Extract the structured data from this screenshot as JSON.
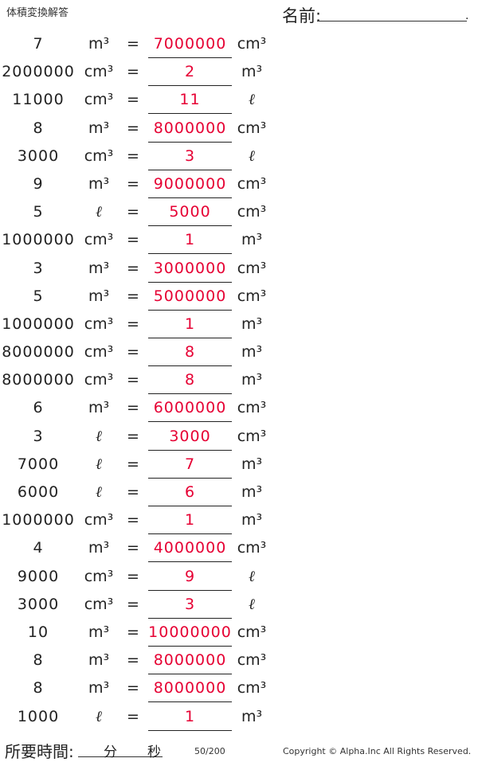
{
  "header": {
    "title": "体積変換解答",
    "name_label": "名前:",
    "name_end": "."
  },
  "rows": [
    {
      "value": "7",
      "from_unit": "m³",
      "equals": "=",
      "answer": "7000000",
      "to_unit": "cm³"
    },
    {
      "value": "2000000",
      "from_unit": "cm³",
      "equals": "=",
      "answer": "2",
      "to_unit": "m³"
    },
    {
      "value": "11000",
      "from_unit": "cm³",
      "equals": "=",
      "answer": "11",
      "to_unit": "ℓ"
    },
    {
      "value": "8",
      "from_unit": "m³",
      "equals": "=",
      "answer": "8000000",
      "to_unit": "cm³"
    },
    {
      "value": "3000",
      "from_unit": "cm³",
      "equals": "=",
      "answer": "3",
      "to_unit": "ℓ"
    },
    {
      "value": "9",
      "from_unit": "m³",
      "equals": "=",
      "answer": "9000000",
      "to_unit": "cm³"
    },
    {
      "value": "5",
      "from_unit": "ℓ",
      "equals": "=",
      "answer": "5000",
      "to_unit": "cm³"
    },
    {
      "value": "1000000",
      "from_unit": "cm³",
      "equals": "=",
      "answer": "1",
      "to_unit": "m³"
    },
    {
      "value": "3",
      "from_unit": "m³",
      "equals": "=",
      "answer": "3000000",
      "to_unit": "cm³"
    },
    {
      "value": "5",
      "from_unit": "m³",
      "equals": "=",
      "answer": "5000000",
      "to_unit": "cm³"
    },
    {
      "value": "1000000",
      "from_unit": "cm³",
      "equals": "=",
      "answer": "1",
      "to_unit": "m³"
    },
    {
      "value": "8000000",
      "from_unit": "cm³",
      "equals": "=",
      "answer": "8",
      "to_unit": "m³"
    },
    {
      "value": "8000000",
      "from_unit": "cm³",
      "equals": "=",
      "answer": "8",
      "to_unit": "m³"
    },
    {
      "value": "6",
      "from_unit": "m³",
      "equals": "=",
      "answer": "6000000",
      "to_unit": "cm³"
    },
    {
      "value": "3",
      "from_unit": "ℓ",
      "equals": "=",
      "answer": "3000",
      "to_unit": "cm³"
    },
    {
      "value": "7000",
      "from_unit": "ℓ",
      "equals": "=",
      "answer": "7",
      "to_unit": "m³"
    },
    {
      "value": "6000",
      "from_unit": "ℓ",
      "equals": "=",
      "answer": "6",
      "to_unit": "m³"
    },
    {
      "value": "1000000",
      "from_unit": "cm³",
      "equals": "=",
      "answer": "1",
      "to_unit": "m³"
    },
    {
      "value": "4",
      "from_unit": "m³",
      "equals": "=",
      "answer": "4000000",
      "to_unit": "cm³"
    },
    {
      "value": "9000",
      "from_unit": "cm³",
      "equals": "=",
      "answer": "9",
      "to_unit": "ℓ"
    },
    {
      "value": "3000",
      "from_unit": "cm³",
      "equals": "=",
      "answer": "3",
      "to_unit": "ℓ"
    },
    {
      "value": "10",
      "from_unit": "m³",
      "equals": "=",
      "answer": "10000000",
      "to_unit": "cm³"
    },
    {
      "value": "8",
      "from_unit": "m³",
      "equals": "=",
      "answer": "8000000",
      "to_unit": "cm³"
    },
    {
      "value": "8",
      "from_unit": "m³",
      "equals": "=",
      "answer": "8000000",
      "to_unit": "cm³"
    },
    {
      "value": "1000",
      "from_unit": "ℓ",
      "equals": "=",
      "answer": "1",
      "to_unit": "m³"
    }
  ],
  "footer": {
    "time_label": "所要時間:",
    "minutes_label": "分",
    "seconds_label": "秒",
    "page": "50/200",
    "copyright": "Copyright © Alpha.Inc All Rights Reserved."
  },
  "colors": {
    "answer": "#e60033",
    "text": "#222222"
  }
}
